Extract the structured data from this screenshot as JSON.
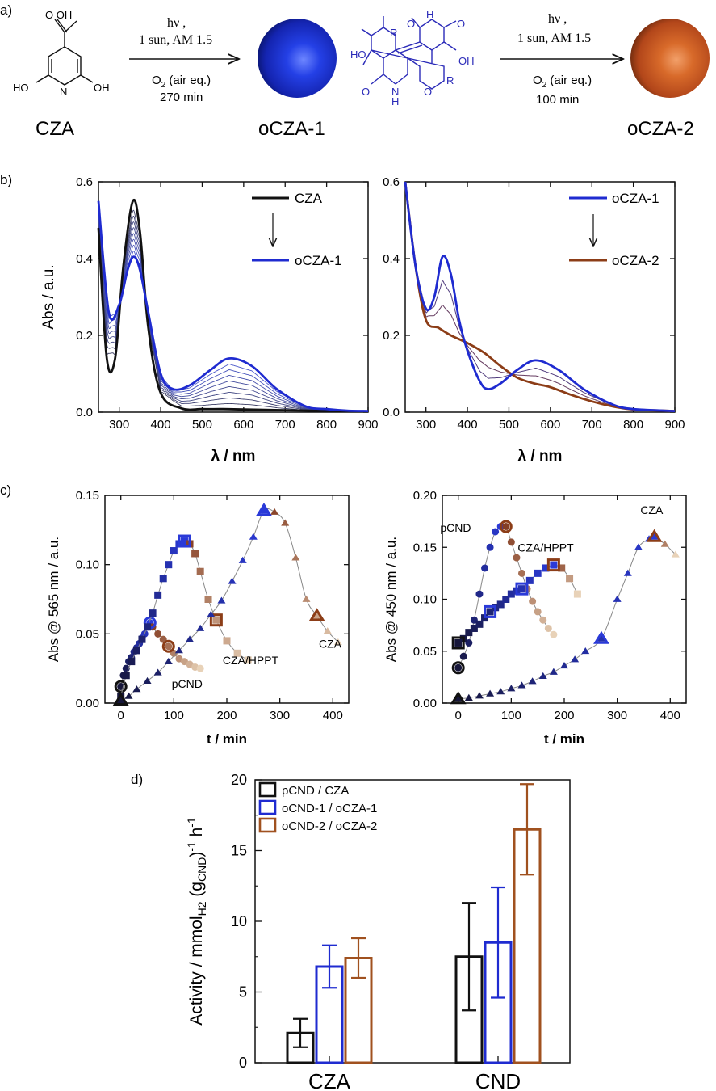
{
  "panel_labels": {
    "a": "a)",
    "b": "b)",
    "c": "c)",
    "d": "d)"
  },
  "scheme": {
    "cza": {
      "label": "CZA",
      "group_cooh": "O OH",
      "oh_left": "HO",
      "n": "N",
      "oh_right": "OH"
    },
    "arrow1": {
      "hv": "hν ,",
      "sun": "1 sun, AM 1.5",
      "o2_prefix": "O",
      "o2_sub": "2",
      "o2_suffix": " (air eq.)",
      "time": "270 min"
    },
    "ocza1": {
      "label": "oCZA-1",
      "color": "#1f35d6"
    },
    "dimer": {
      "h_top": "H",
      "n": "N",
      "o": "O",
      "ho": "HO",
      "r": "R",
      "oh": "OH",
      "h_bottom": "H",
      "color": "#2a2ab8"
    },
    "arrow2": {
      "hv": "hν ,",
      "sun": "1 sun, AM 1.5",
      "o2_prefix": "O",
      "o2_sub": "2",
      "o2_suffix": " (air eq.)",
      "time": "100 min"
    },
    "ocza2": {
      "label": "oCZA-2",
      "color": "#c45a1c"
    }
  },
  "colors": {
    "black": "#111111",
    "blue": "#1f2bd0",
    "brown": "#8c3d17",
    "navy": "#1b1b5e",
    "tan": "#d6b08a"
  },
  "chart_data": [
    {
      "id": "b-left",
      "type": "line",
      "title": "",
      "xlabel": "λ / nm",
      "ylabel": "Abs / a.u.",
      "xlim": [
        250,
        900
      ],
      "ylim": [
        0,
        0.6
      ],
      "xticks": [
        300,
        400,
        500,
        600,
        700,
        800,
        900
      ],
      "yticks": [
        0.0,
        0.2,
        0.4,
        0.6
      ],
      "ytick_labels": [
        "0.0",
        "0.2",
        "0.4",
        "0.6"
      ],
      "legend": [
        {
          "name": "CZA",
          "color": "#111111"
        },
        {
          "name": "oCZA-1",
          "color": "#1f2bd0"
        }
      ],
      "series": [
        {
          "name": "CZA",
          "x": [
            250,
            270,
            290,
            310,
            333,
            350,
            370,
            400,
            450,
            500,
            550,
            600,
            700,
            800,
            900
          ],
          "y": [
            0.48,
            0.14,
            0.14,
            0.38,
            0.55,
            0.47,
            0.22,
            0.05,
            0.01,
            0.008,
            0.008,
            0.007,
            0.005,
            0.003,
            0.002
          ]
        },
        {
          "name": "oCZA-1",
          "x": [
            250,
            275,
            300,
            320,
            335,
            350,
            370,
            400,
            430,
            470,
            520,
            565,
            620,
            680,
            750,
            800,
            850,
            900
          ],
          "y": [
            0.55,
            0.26,
            0.28,
            0.37,
            0.405,
            0.37,
            0.26,
            0.1,
            0.06,
            0.07,
            0.11,
            0.14,
            0.12,
            0.06,
            0.015,
            0.008,
            0.004,
            0.003
          ]
        }
      ]
    },
    {
      "id": "b-right",
      "type": "line",
      "title": "",
      "xlabel": "λ / nm",
      "ylabel": "",
      "xlim": [
        250,
        900
      ],
      "ylim": [
        0,
        0.6
      ],
      "xticks": [
        300,
        400,
        500,
        600,
        700,
        800,
        900
      ],
      "yticks": [
        0.0,
        0.2,
        0.4,
        0.6
      ],
      "ytick_labels": [
        "0.0",
        "0.2",
        "0.4",
        "0.6"
      ],
      "legend": [
        {
          "name": "oCZA-1",
          "color": "#1f2bd0"
        },
        {
          "name": "oCZA-2",
          "color": "#8c3d17"
        }
      ],
      "series": [
        {
          "name": "oCZA-1",
          "x": [
            250,
            275,
            300,
            320,
            340,
            360,
            380,
            400,
            430,
            450,
            480,
            520,
            565,
            620,
            680,
            750,
            800,
            900
          ],
          "y": [
            0.6,
            0.38,
            0.27,
            0.3,
            0.405,
            0.36,
            0.24,
            0.16,
            0.08,
            0.06,
            0.075,
            0.11,
            0.135,
            0.11,
            0.06,
            0.02,
            0.008,
            0.003
          ]
        },
        {
          "name": "oCZA-2",
          "x": [
            250,
            275,
            300,
            330,
            360,
            400,
            440,
            480,
            520,
            560,
            600,
            650,
            700,
            750,
            800,
            900
          ],
          "y": [
            0.6,
            0.38,
            0.24,
            0.22,
            0.2,
            0.18,
            0.155,
            0.12,
            0.09,
            0.075,
            0.065,
            0.045,
            0.028,
            0.015,
            0.007,
            0.003
          ]
        }
      ]
    },
    {
      "id": "c-left",
      "type": "scatter",
      "title": "",
      "xlabel": "t / min",
      "ylabel": "Abs @ 565 nm / a.u.",
      "xlim": [
        -30,
        430
      ],
      "ylim": [
        0,
        0.15
      ],
      "xticks": [
        0,
        100,
        200,
        300,
        400
      ],
      "yticks": [
        0.0,
        0.05,
        0.1,
        0.15
      ],
      "ytick_labels": [
        "0.00",
        "0.05",
        "0.10",
        "0.15"
      ],
      "annotations": [
        {
          "text": "pCND",
          "x": 125,
          "y": 0.011
        },
        {
          "text": "CZA/HPPT",
          "x": 245,
          "y": 0.028
        },
        {
          "text": "CZA",
          "x": 395,
          "y": 0.04
        }
      ],
      "series": [
        {
          "name": "pCND",
          "marker": "circle",
          "x": [
            0,
            5,
            10,
            15,
            20,
            25,
            30,
            35,
            40,
            45,
            50,
            55,
            60,
            70,
            80,
            90,
            100,
            110,
            120,
            130,
            140,
            150
          ],
          "y": [
            0.012,
            0.02,
            0.025,
            0.03,
            0.033,
            0.037,
            0.04,
            0.043,
            0.047,
            0.05,
            0.055,
            0.058,
            0.055,
            0.05,
            0.046,
            0.041,
            0.036,
            0.032,
            0.03,
            0.028,
            0.026,
            0.025
          ]
        },
        {
          "name": "CZA/HPPT",
          "marker": "square",
          "x": [
            0,
            10,
            20,
            30,
            40,
            50,
            60,
            70,
            80,
            90,
            100,
            110,
            120,
            130,
            140,
            150,
            165,
            180,
            200,
            220,
            240
          ],
          "y": [
            0.005,
            0.02,
            0.03,
            0.038,
            0.046,
            0.055,
            0.065,
            0.078,
            0.09,
            0.1,
            0.11,
            0.115,
            0.117,
            0.115,
            0.108,
            0.095,
            0.075,
            0.06,
            0.045,
            0.036,
            0.031
          ]
        },
        {
          "name": "CZA",
          "marker": "triangle",
          "x": [
            0,
            15,
            30,
            50,
            70,
            90,
            110,
            130,
            150,
            170,
            190,
            210,
            230,
            250,
            270,
            290,
            310,
            330,
            350,
            370,
            390,
            410
          ],
          "y": [
            0.002,
            0.005,
            0.01,
            0.016,
            0.022,
            0.03,
            0.038,
            0.046,
            0.054,
            0.064,
            0.074,
            0.088,
            0.103,
            0.12,
            0.139,
            0.138,
            0.13,
            0.105,
            0.075,
            0.063,
            0.052,
            0.044
          ]
        }
      ]
    },
    {
      "id": "c-right",
      "type": "scatter",
      "title": "",
      "xlabel": "t / min",
      "ylabel": "Abs @ 450 nm / a.u.",
      "xlim": [
        -30,
        430
      ],
      "ylim": [
        0,
        0.2
      ],
      "xticks": [
        0,
        100,
        200,
        300,
        400
      ],
      "yticks": [
        0.0,
        0.05,
        0.1,
        0.15,
        0.2
      ],
      "ytick_labels": [
        "0.00",
        "0.05",
        "0.10",
        "0.15",
        "0.20"
      ],
      "annotations": [
        {
          "text": "pCND",
          "x": -5,
          "y": 0.165
        },
        {
          "text": "CZA/HPPT",
          "x": 165,
          "y": 0.146
        },
        {
          "text": "CZA",
          "x": 365,
          "y": 0.182
        }
      ],
      "series": [
        {
          "name": "pCND",
          "marker": "circle",
          "x": [
            0,
            10,
            20,
            30,
            40,
            50,
            60,
            70,
            80,
            90,
            100,
            110,
            120,
            130,
            140,
            150,
            160,
            170,
            180
          ],
          "y": [
            0.034,
            0.045,
            0.058,
            0.08,
            0.105,
            0.13,
            0.15,
            0.165,
            0.17,
            0.17,
            0.155,
            0.14,
            0.125,
            0.11,
            0.098,
            0.088,
            0.08,
            0.072,
            0.066
          ]
        },
        {
          "name": "CZA/HPPT",
          "marker": "square",
          "x": [
            0,
            10,
            20,
            30,
            40,
            50,
            60,
            70,
            80,
            90,
            100,
            110,
            120,
            135,
            150,
            165,
            180,
            195,
            210,
            225
          ],
          "y": [
            0.058,
            0.062,
            0.068,
            0.072,
            0.076,
            0.082,
            0.088,
            0.092,
            0.095,
            0.1,
            0.105,
            0.108,
            0.11,
            0.118,
            0.125,
            0.13,
            0.133,
            0.13,
            0.12,
            0.105
          ]
        },
        {
          "name": "CZA",
          "marker": "triangle",
          "x": [
            0,
            20,
            40,
            60,
            80,
            100,
            120,
            140,
            160,
            180,
            200,
            220,
            240,
            270,
            300,
            320,
            340,
            360,
            370,
            390,
            410
          ],
          "y": [
            0.004,
            0.005,
            0.007,
            0.009,
            0.011,
            0.014,
            0.017,
            0.021,
            0.026,
            0.03,
            0.036,
            0.042,
            0.05,
            0.062,
            0.1,
            0.125,
            0.15,
            0.158,
            0.16,
            0.153,
            0.143
          ]
        }
      ]
    },
    {
      "id": "d",
      "type": "bar",
      "title": "",
      "xlabel": "",
      "ylabel_main": "Activity / mmol",
      "ylabel_sub1": "H2",
      "ylabel_mid": " (g",
      "ylabel_sub2": "CND",
      "ylabel_close": ")",
      "ylabel_sup1": "-1",
      "ylabel_unit": " h",
      "ylabel_sup2": "-1",
      "categories": [
        "CZA",
        "CND"
      ],
      "ylim": [
        0,
        20
      ],
      "yticks": [
        0,
        5,
        10,
        15,
        20
      ],
      "ytick_labels": [
        "0",
        "5",
        "10",
        "15",
        "20"
      ],
      "series": [
        {
          "name": "pCND / CZA",
          "color": "#111111",
          "values": [
            2.1,
            7.5
          ],
          "errors": [
            1.0,
            3.8
          ]
        },
        {
          "name": "oCND-1 / oCZA-1",
          "color": "#1f2bd0",
          "values": [
            6.8,
            8.5
          ],
          "errors": [
            1.5,
            3.9
          ]
        },
        {
          "name": "oCND-2 / oCZA-2",
          "color": "#a0511f",
          "values": [
            7.4,
            16.5
          ],
          "errors": [
            1.4,
            3.2
          ]
        }
      ]
    }
  ]
}
